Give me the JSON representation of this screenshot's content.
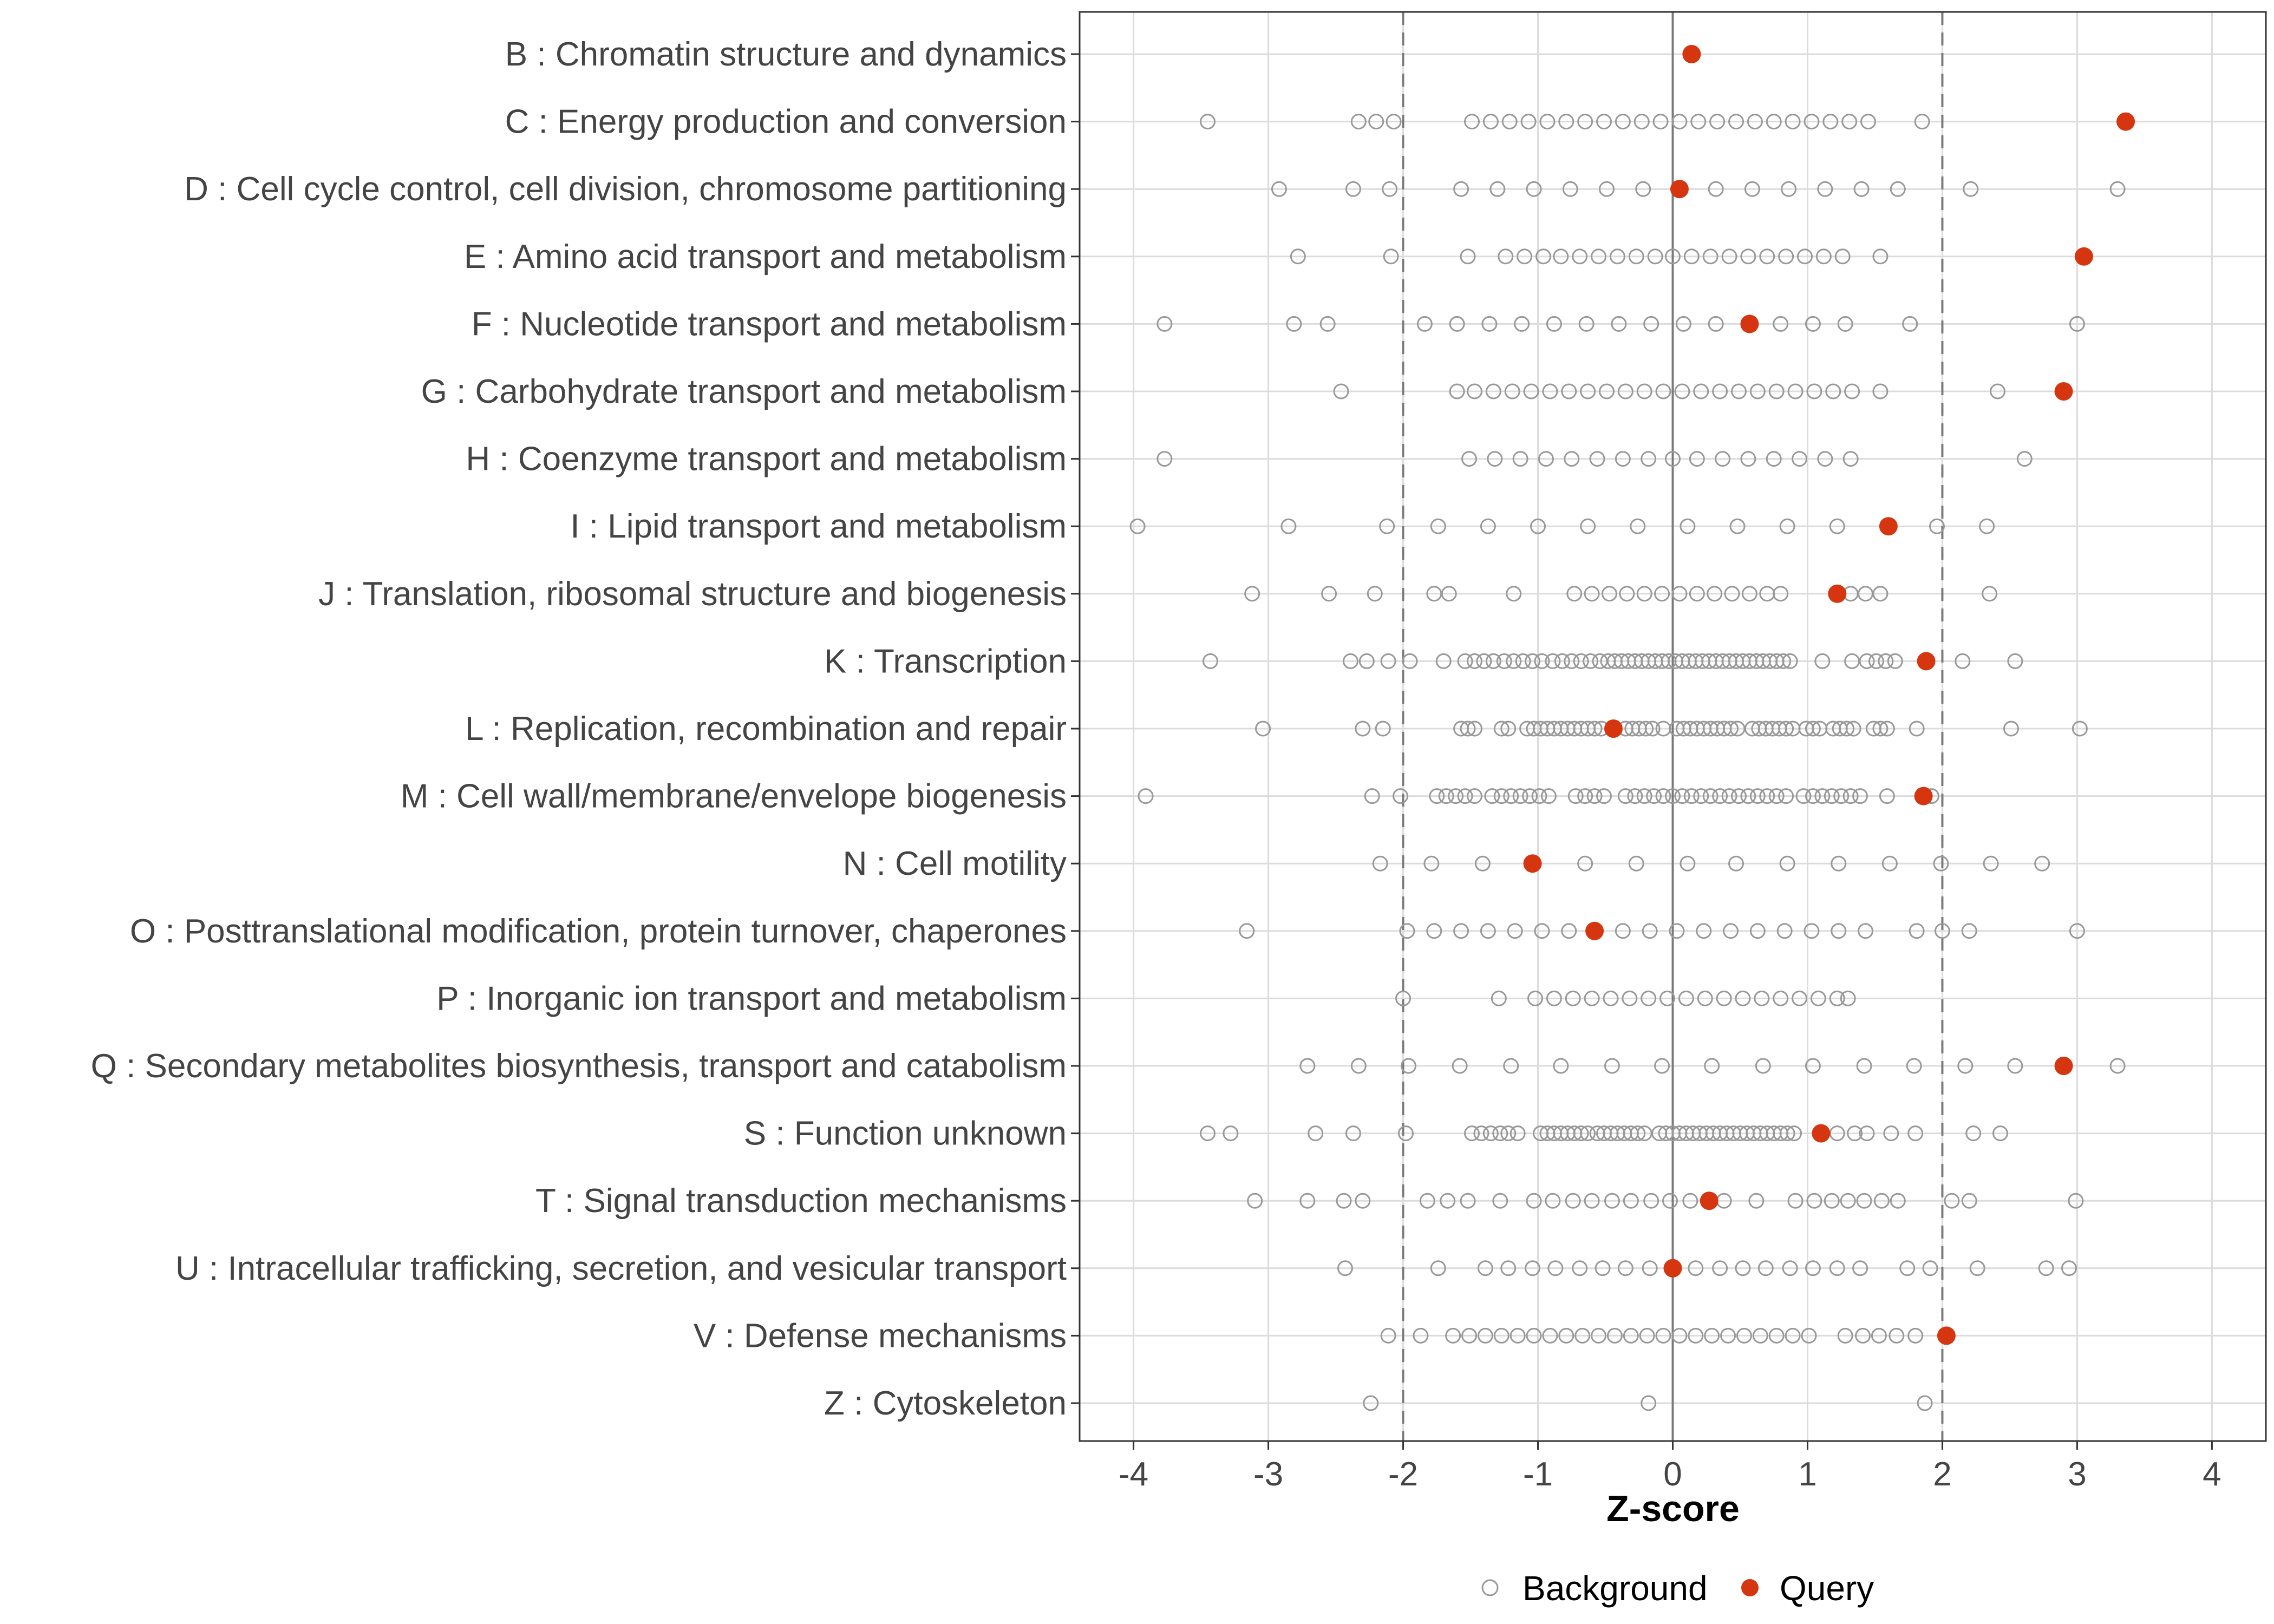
{
  "chart_data": {
    "type": "scatter",
    "title": "",
    "xlabel": "Z-score",
    "ylabel": "",
    "xlim": [
      -4.4,
      4.4
    ],
    "xticks": [
      -4,
      -3,
      -2,
      -1,
      0,
      1,
      2,
      3,
      4
    ],
    "xtick_labels": [
      "-4",
      "-3",
      "-2",
      "-1",
      "0",
      "1",
      "2",
      "3",
      "4"
    ],
    "reference_lines": {
      "solid": [
        0
      ],
      "dashed": [
        -2,
        2
      ]
    },
    "grid": true,
    "legend": {
      "position": "bottom",
      "entries": [
        {
          "label": "Background",
          "style": "open-circle"
        },
        {
          "label": "Query",
          "style": "filled-circle"
        }
      ]
    },
    "colors": {
      "background": "#999999",
      "query": "#d5350f",
      "grid": "#dcdcdc",
      "reference": "#7a7a7a"
    },
    "categories": [
      "B : Chromatin structure and dynamics",
      "C : Energy production and conversion",
      "D : Cell cycle control, cell division, chromosome partitioning",
      "E : Amino acid transport and metabolism",
      "F : Nucleotide transport and metabolism",
      "G : Carbohydrate transport and metabolism",
      "H : Coenzyme transport and metabolism",
      "I : Lipid transport and metabolism",
      "J : Translation, ribosomal structure and biogenesis",
      "K : Transcription",
      "L : Replication, recombination and repair",
      "M : Cell wall/membrane/envelope biogenesis",
      "N : Cell motility",
      "O : Posttranslational modification, protein turnover, chaperones",
      "P : Inorganic ion transport and metabolism",
      "Q : Secondary metabolites biosynthesis, transport and catabolism",
      "S : Function unknown",
      "T : Signal transduction mechanisms",
      "U : Intracellular trafficking, secretion, and vesicular transport",
      "V : Defense mechanisms",
      "Z : Cytoskeleton"
    ],
    "series": [
      {
        "name": "Background",
        "values": [
          [],
          [
            -3.45,
            -2.33,
            -2.2,
            -2.07,
            -1.49,
            -1.35,
            -1.21,
            -1.07,
            -0.93,
            -0.79,
            -0.65,
            -0.51,
            -0.37,
            -0.23,
            -0.09,
            0.05,
            0.19,
            0.33,
            0.47,
            0.61,
            0.75,
            0.89,
            1.03,
            1.17,
            1.31,
            1.45,
            1.85
          ],
          [
            -2.92,
            -2.37,
            -2.1,
            -1.57,
            -1.3,
            -1.03,
            -0.76,
            -0.49,
            -0.22,
            0.32,
            0.59,
            0.86,
            1.13,
            1.4,
            1.67,
            2.21,
            3.3
          ],
          [
            -2.78,
            -2.09,
            -1.52,
            -1.24,
            -1.1,
            -0.96,
            -0.83,
            -0.69,
            -0.55,
            -0.41,
            -0.27,
            -0.13,
            0.0,
            0.14,
            0.28,
            0.42,
            0.56,
            0.7,
            0.84,
            0.98,
            1.12,
            1.26,
            1.54
          ],
          [
            -3.77,
            -2.81,
            -2.56,
            -1.84,
            -1.6,
            -1.36,
            -1.12,
            -0.88,
            -0.64,
            -0.4,
            -0.16,
            0.08,
            0.32,
            0.8,
            1.04,
            1.28,
            1.76,
            3.0
          ],
          [
            -2.46,
            -1.6,
            -1.47,
            -1.33,
            -1.19,
            -1.05,
            -0.91,
            -0.77,
            -0.63,
            -0.49,
            -0.35,
            -0.21,
            -0.07,
            0.07,
            0.21,
            0.35,
            0.49,
            0.63,
            0.77,
            0.91,
            1.05,
            1.19,
            1.33,
            1.54,
            2.41
          ],
          [
            -3.77,
            -1.51,
            -1.32,
            -1.13,
            -0.94,
            -0.75,
            -0.56,
            -0.37,
            -0.18,
            0.0,
            0.18,
            0.37,
            0.56,
            0.75,
            0.94,
            1.13,
            1.32,
            2.61
          ],
          [
            -3.97,
            -2.85,
            -2.12,
            -1.74,
            -1.37,
            -1.0,
            -0.63,
            -0.26,
            0.11,
            0.48,
            0.85,
            1.22,
            1.96,
            2.33
          ],
          [
            -3.12,
            -2.55,
            -2.21,
            -1.77,
            -1.66,
            -1.18,
            -0.73,
            -0.6,
            -0.47,
            -0.34,
            -0.21,
            -0.08,
            0.05,
            0.18,
            0.31,
            0.44,
            0.57,
            0.7,
            0.8,
            1.32,
            1.43,
            1.54,
            2.35
          ],
          [
            -3.43,
            -2.39,
            -2.27,
            -2.11,
            -1.95,
            -1.7,
            -1.54,
            -1.47,
            -1.4,
            -1.33,
            -1.25,
            -1.18,
            -1.11,
            -1.04,
            -0.97,
            -0.89,
            -0.82,
            -0.75,
            -0.68,
            -0.61,
            -0.54,
            -0.48,
            -0.43,
            -0.38,
            -0.33,
            -0.28,
            -0.23,
            -0.18,
            -0.13,
            -0.08,
            -0.03,
            0.02,
            0.07,
            0.12,
            0.17,
            0.22,
            0.27,
            0.32,
            0.37,
            0.42,
            0.47,
            0.52,
            0.57,
            0.62,
            0.67,
            0.72,
            0.77,
            0.82,
            0.87,
            1.11,
            1.33,
            1.44,
            1.51,
            1.58,
            1.65,
            2.15,
            2.54
          ],
          [
            -3.04,
            -2.3,
            -2.15,
            -1.57,
            -1.52,
            -1.47,
            -1.27,
            -1.22,
            -1.08,
            -1.03,
            -0.98,
            -0.93,
            -0.88,
            -0.83,
            -0.78,
            -0.73,
            -0.68,
            -0.63,
            -0.58,
            -0.53,
            -0.35,
            -0.3,
            -0.25,
            -0.2,
            -0.15,
            -0.07,
            0.03,
            0.08,
            0.13,
            0.18,
            0.23,
            0.28,
            0.33,
            0.38,
            0.43,
            0.48,
            0.59,
            0.64,
            0.69,
            0.74,
            0.79,
            0.84,
            0.89,
            0.99,
            1.04,
            1.09,
            1.19,
            1.24,
            1.29,
            1.34,
            1.49,
            1.54,
            1.59,
            1.81,
            2.51,
            3.02
          ],
          [
            -3.91,
            -2.23,
            -2.02,
            -1.75,
            -1.68,
            -1.61,
            -1.54,
            -1.47,
            -1.34,
            -1.27,
            -1.2,
            -1.13,
            -1.06,
            -0.99,
            -0.92,
            -0.72,
            -0.65,
            -0.58,
            -0.51,
            -0.35,
            -0.28,
            -0.21,
            -0.14,
            -0.07,
            0.0,
            0.07,
            0.14,
            0.21,
            0.28,
            0.35,
            0.42,
            0.49,
            0.56,
            0.63,
            0.7,
            0.77,
            0.84,
            0.97,
            1.04,
            1.11,
            1.18,
            1.25,
            1.32,
            1.39,
            1.59,
            1.92
          ],
          [
            -2.17,
            -1.79,
            -1.41,
            -0.65,
            -0.27,
            0.11,
            0.47,
            0.85,
            1.23,
            1.61,
            1.99,
            2.36,
            2.74
          ],
          [
            -3.16,
            -1.97,
            -1.77,
            -1.57,
            -1.37,
            -1.17,
            -0.97,
            -0.77,
            -0.37,
            -0.17,
            0.03,
            0.23,
            0.43,
            0.63,
            0.83,
            1.03,
            1.23,
            1.43,
            1.81,
            2.0,
            2.2,
            3.0
          ],
          [
            -2.0,
            -1.29,
            -1.02,
            -0.88,
            -0.74,
            -0.6,
            -0.46,
            -0.32,
            -0.18,
            -0.04,
            0.1,
            0.24,
            0.38,
            0.52,
            0.66,
            0.8,
            0.94,
            1.08,
            1.22,
            1.3
          ],
          [
            -2.71,
            -2.33,
            -1.96,
            -1.58,
            -1.2,
            -0.83,
            -0.45,
            -0.08,
            0.29,
            0.67,
            1.04,
            1.42,
            1.79,
            2.17,
            2.54,
            3.3
          ],
          [
            -3.45,
            -3.28,
            -2.65,
            -2.37,
            -1.98,
            -1.49,
            -1.42,
            -1.35,
            -1.28,
            -1.22,
            -1.15,
            -0.98,
            -0.93,
            -0.88,
            -0.83,
            -0.78,
            -0.73,
            -0.68,
            -0.63,
            -0.56,
            -0.51,
            -0.46,
            -0.41,
            -0.36,
            -0.31,
            -0.26,
            -0.21,
            -0.1,
            -0.05,
            0.0,
            0.05,
            0.1,
            0.15,
            0.2,
            0.25,
            0.3,
            0.35,
            0.4,
            0.45,
            0.5,
            0.55,
            0.6,
            0.65,
            0.7,
            0.75,
            0.8,
            0.85,
            0.9,
            1.22,
            1.35,
            1.44,
            1.62,
            1.8,
            2.23,
            2.43
          ],
          [
            -3.1,
            -2.71,
            -2.44,
            -2.3,
            -1.82,
            -1.67,
            -1.52,
            -1.28,
            -1.03,
            -0.89,
            -0.74,
            -0.6,
            -0.45,
            -0.31,
            -0.16,
            -0.02,
            0.13,
            0.38,
            0.62,
            0.91,
            1.05,
            1.18,
            1.3,
            1.42,
            1.55,
            1.67,
            2.07,
            2.2,
            2.99
          ],
          [
            -2.43,
            -1.74,
            -1.39,
            -1.22,
            -1.04,
            -0.87,
            -0.69,
            -0.52,
            -0.35,
            -0.17,
            0.17,
            0.35,
            0.52,
            0.69,
            0.87,
            1.04,
            1.22,
            1.39,
            1.74,
            1.91,
            2.26,
            2.77,
            2.94
          ],
          [
            -2.11,
            -1.87,
            -1.63,
            -1.51,
            -1.39,
            -1.27,
            -1.15,
            -1.03,
            -0.91,
            -0.79,
            -0.67,
            -0.55,
            -0.43,
            -0.31,
            -0.19,
            -0.07,
            0.05,
            0.17,
            0.29,
            0.41,
            0.53,
            0.65,
            0.77,
            0.89,
            1.01,
            1.28,
            1.41,
            1.53,
            1.66,
            1.8
          ],
          [
            -2.24,
            -0.18,
            1.87
          ]
        ]
      },
      {
        "name": "Query",
        "values": [
          0.14,
          3.36,
          0.05,
          3.05,
          0.57,
          2.9,
          null,
          1.6,
          1.22,
          1.88,
          -0.44,
          1.86,
          -1.04,
          -0.58,
          null,
          2.9,
          1.1,
          0.27,
          0.0,
          2.03,
          null
        ]
      }
    ]
  }
}
